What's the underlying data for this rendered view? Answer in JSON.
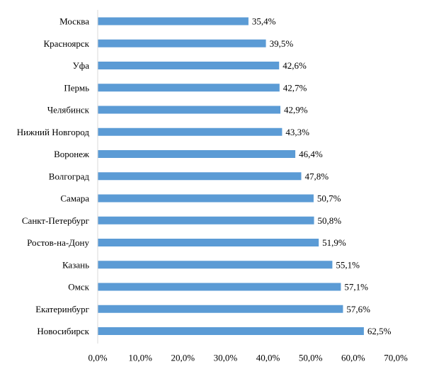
{
  "chart_data": {
    "type": "bar",
    "orientation": "horizontal",
    "categories": [
      "Москва",
      "Красноярск",
      "Уфа",
      "Пермь",
      "Челябинск",
      "Нижний Новгород",
      "Воронеж",
      "Волгоград",
      "Самара",
      "Санкт-Петербург",
      "Ростов-на-Дону",
      "Казань",
      "Омск",
      "Екатеринбург",
      "Новосибирск"
    ],
    "values": [
      35.4,
      39.5,
      42.6,
      42.7,
      42.9,
      43.3,
      46.4,
      47.8,
      50.7,
      50.8,
      51.9,
      55.1,
      57.1,
      57.6,
      62.5
    ],
    "value_labels": [
      "35,4%",
      "39,5%",
      "42,6%",
      "42,7%",
      "42,9%",
      "43,3%",
      "46,4%",
      "47,8%",
      "50,7%",
      "50,8%",
      "51,9%",
      "55,1%",
      "57,1%",
      "57,6%",
      "62,5%"
    ],
    "x_ticks": [
      0,
      10,
      20,
      30,
      40,
      50,
      60,
      70
    ],
    "x_tick_labels": [
      "0,0%",
      "10,0%",
      "20,0%",
      "30,0%",
      "40,0%",
      "50,0%",
      "60,0%",
      "70,0%"
    ],
    "xlim": [
      0,
      70
    ],
    "grid": false,
    "legend": "none",
    "bar_color": "#5B9BD5",
    "axis_color": "#D9D9D9"
  }
}
